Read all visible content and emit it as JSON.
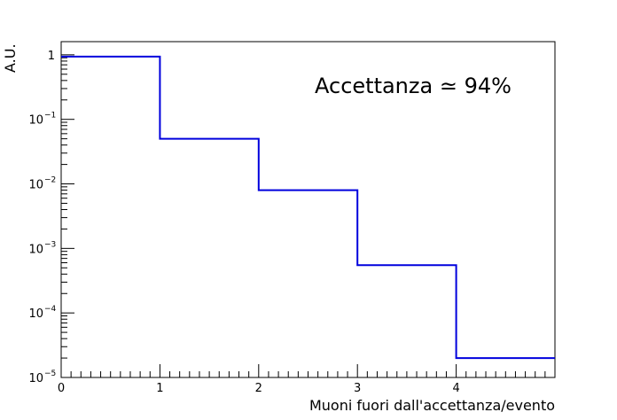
{
  "chart_data": {
    "type": "histogram",
    "title": "",
    "xlabel": "Muoni fuori dall'accettanza/evento",
    "ylabel": "A.U.",
    "xlim": [
      0,
      5
    ],
    "ylim": [
      1e-05,
      1.6
    ],
    "yscale": "log",
    "grid": false,
    "annotation": {
      "text": "Accettanza ≃ 94%",
      "color": "#ff0000"
    },
    "x_tick_labels": [
      "0",
      "1",
      "2",
      "3",
      "4"
    ],
    "y_tick_labels": [
      {
        "value": 1,
        "mantissa": "1",
        "exp": ""
      },
      {
        "value": 0.1,
        "mantissa": "10",
        "exp": "−1"
      },
      {
        "value": 0.01,
        "mantissa": "10",
        "exp": "−2"
      },
      {
        "value": 0.001,
        "mantissa": "10",
        "exp": "−3"
      },
      {
        "value": 0.0001,
        "mantissa": "10",
        "exp": "−4"
      },
      {
        "value": 1e-05,
        "mantissa": "10",
        "exp": "−5"
      }
    ],
    "series": [
      {
        "color": "#0000dd",
        "bins": [
          {
            "x0": 0,
            "x1": 1,
            "value": 0.94
          },
          {
            "x0": 1,
            "x1": 2,
            "value": 0.05
          },
          {
            "x0": 2,
            "x1": 3,
            "value": 0.008
          },
          {
            "x0": 3,
            "x1": 4,
            "value": 0.00055
          },
          {
            "x0": 4,
            "x1": 5,
            "value": 2e-05
          }
        ]
      }
    ]
  }
}
